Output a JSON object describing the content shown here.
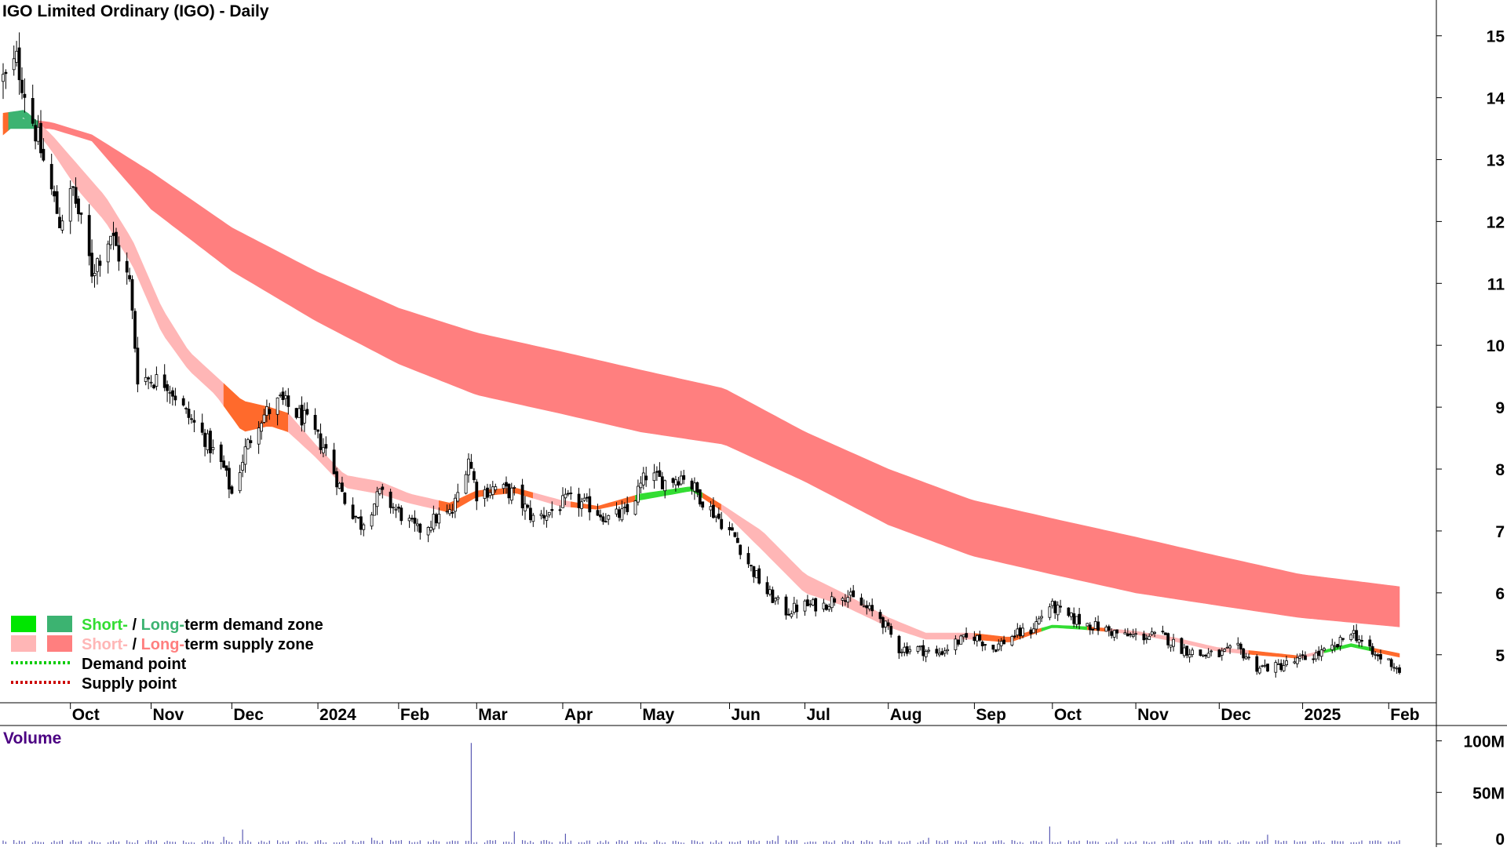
{
  "chart_data": {
    "type": "candlestick",
    "title": "IGO Limited Ordinary (IGO) - Daily",
    "price_axis": {
      "ticks": [
        5,
        6,
        7,
        8,
        9,
        10,
        11,
        12,
        13,
        14,
        15
      ],
      "range": [
        4.3,
        15.3
      ],
      "position": "right"
    },
    "time_axis": {
      "labels": [
        "Oct",
        "Nov",
        "Dec",
        "2024",
        "Feb",
        "Mar",
        "Apr",
        "May",
        "Jun",
        "Jul",
        "Aug",
        "Sep",
        "Oct",
        "Nov",
        "Dec",
        "2025",
        "Feb"
      ],
      "range": [
        "2023-09-07",
        "2025-02-07"
      ]
    },
    "anchors": [
      [
        "2023-09-08",
        14.3
      ],
      [
        "2023-09-12",
        14.6
      ],
      [
        "2023-09-20",
        13.3
      ],
      [
        "2023-09-28",
        12.0
      ],
      [
        "2023-10-03",
        12.5
      ],
      [
        "2023-10-10",
        11.2
      ],
      [
        "2023-10-17",
        11.8
      ],
      [
        "2023-10-24",
        11.0
      ],
      [
        "2023-10-27",
        9.5
      ],
      [
        "2023-11-07",
        9.4
      ],
      [
        "2023-11-14",
        8.9
      ],
      [
        "2023-11-21",
        8.5
      ],
      [
        "2023-11-28",
        8.0
      ],
      [
        "2023-12-01",
        7.6
      ],
      [
        "2023-12-06",
        8.3
      ],
      [
        "2023-12-11",
        8.8
      ],
      [
        "2023-12-19",
        9.1
      ],
      [
        "2023-12-28",
        8.8
      ],
      [
        "2024-01-05",
        8.3
      ],
      [
        "2024-01-12",
        7.5
      ],
      [
        "2024-01-18",
        7.1
      ],
      [
        "2024-01-25",
        7.6
      ],
      [
        "2024-02-01",
        7.3
      ],
      [
        "2024-02-08",
        7.0
      ],
      [
        "2024-02-15",
        7.2
      ],
      [
        "2024-02-21",
        7.3
      ],
      [
        "2024-02-27",
        8.2
      ],
      [
        "2024-03-01",
        7.6
      ],
      [
        "2024-03-08",
        7.7
      ],
      [
        "2024-03-15",
        7.6
      ],
      [
        "2024-03-22",
        7.2
      ],
      [
        "2024-03-28",
        7.3
      ],
      [
        "2024-04-04",
        7.5
      ],
      [
        "2024-04-12",
        7.4
      ],
      [
        "2024-04-19",
        7.2
      ],
      [
        "2024-04-26",
        7.3
      ],
      [
        "2024-05-03",
        7.9
      ],
      [
        "2024-05-10",
        7.8
      ],
      [
        "2024-05-17",
        7.9
      ],
      [
        "2024-05-24",
        7.5
      ],
      [
        "2024-05-30",
        7.2
      ],
      [
        "2024-06-05",
        6.9
      ],
      [
        "2024-06-11",
        6.4
      ],
      [
        "2024-06-17",
        6.0
      ],
      [
        "2024-06-24",
        5.7
      ],
      [
        "2024-07-01",
        5.8
      ],
      [
        "2024-07-08",
        5.8
      ],
      [
        "2024-07-15",
        6.0
      ],
      [
        "2024-07-22",
        5.8
      ],
      [
        "2024-07-29",
        5.6
      ],
      [
        "2024-08-05",
        5.1
      ],
      [
        "2024-08-12",
        5.1
      ],
      [
        "2024-08-19",
        5.0
      ],
      [
        "2024-08-26",
        5.2
      ],
      [
        "2024-09-02",
        5.3
      ],
      [
        "2024-09-09",
        5.1
      ],
      [
        "2024-09-16",
        5.3
      ],
      [
        "2024-09-23",
        5.4
      ],
      [
        "2024-09-30",
        5.8
      ],
      [
        "2024-10-07",
        5.6
      ],
      [
        "2024-10-14",
        5.5
      ],
      [
        "2024-10-21",
        5.4
      ],
      [
        "2024-10-28",
        5.3
      ],
      [
        "2024-11-04",
        5.3
      ],
      [
        "2024-11-11",
        5.3
      ],
      [
        "2024-11-18",
        5.1
      ],
      [
        "2024-11-25",
        5.0
      ],
      [
        "2024-12-02",
        5.0
      ],
      [
        "2024-12-09",
        5.1
      ],
      [
        "2024-12-16",
        4.8
      ],
      [
        "2024-12-23",
        4.8
      ],
      [
        "2024-12-31",
        4.9
      ],
      [
        "2025-01-07",
        5.0
      ],
      [
        "2025-01-14",
        5.1
      ],
      [
        "2025-01-20",
        5.4
      ],
      [
        "2025-01-28",
        5.0
      ],
      [
        "2025-02-03",
        4.9
      ],
      [
        "2025-02-07",
        4.75
      ]
    ],
    "short_term_zone": [
      [
        "2023-09-07",
        13.75,
        13.4
      ],
      [
        "2023-09-15",
        13.8,
        13.7
      ],
      [
        "2023-09-25",
        13.4,
        13.15
      ],
      [
        "2023-10-05",
        12.9,
        12.5
      ],
      [
        "2023-10-15",
        12.4,
        12.0
      ],
      [
        "2023-10-25",
        11.7,
        11.3
      ],
      [
        "2023-11-05",
        10.6,
        10.2
      ],
      [
        "2023-11-15",
        9.9,
        9.6
      ],
      [
        "2023-11-25",
        9.5,
        9.2
      ],
      [
        "2023-12-05",
        9.1,
        8.6
      ],
      [
        "2023-12-15",
        9.0,
        8.7
      ],
      [
        "2023-12-22",
        8.9,
        8.6
      ],
      [
        "2024-01-01",
        8.4,
        8.2
      ],
      [
        "2024-01-12",
        7.9,
        7.7
      ],
      [
        "2024-01-25",
        7.8,
        7.6
      ],
      [
        "2024-02-05",
        7.6,
        7.45
      ],
      [
        "2024-02-20",
        7.45,
        7.3
      ],
      [
        "2024-03-01",
        7.65,
        7.55
      ],
      [
        "2024-03-15",
        7.7,
        7.62
      ],
      [
        "2024-04-01",
        7.5,
        7.4
      ],
      [
        "2024-04-15",
        7.4,
        7.35
      ],
      [
        "2024-05-01",
        7.6,
        7.5
      ],
      [
        "2024-05-20",
        7.72,
        7.65
      ],
      [
        "2024-06-01",
        7.4,
        7.3
      ],
      [
        "2024-06-15",
        7.0,
        6.7
      ],
      [
        "2024-07-01",
        6.3,
        6.0
      ],
      [
        "2024-07-15",
        6.0,
        5.8
      ],
      [
        "2024-08-01",
        5.6,
        5.45
      ],
      [
        "2024-08-15",
        5.35,
        5.25
      ],
      [
        "2024-09-01",
        5.35,
        5.25
      ],
      [
        "2024-09-15",
        5.28,
        5.2
      ],
      [
        "2024-10-01",
        5.48,
        5.44
      ],
      [
        "2024-10-15",
        5.45,
        5.4
      ],
      [
        "2024-11-01",
        5.38,
        5.33
      ],
      [
        "2024-11-15",
        5.28,
        5.22
      ],
      [
        "2024-12-01",
        5.12,
        5.06
      ],
      [
        "2024-12-15",
        5.06,
        5.0
      ],
      [
        "2025-01-01",
        4.98,
        4.94
      ],
      [
        "2025-01-20",
        5.18,
        5.13
      ],
      [
        "2025-02-07",
        5.02,
        4.96
      ]
    ],
    "long_term_zone": [
      [
        "2023-09-07",
        13.7,
        13.5
      ],
      [
        "2023-09-25",
        13.6,
        13.5
      ],
      [
        "2023-10-10",
        13.4,
        13.3
      ],
      [
        "2023-11-01",
        12.8,
        12.2
      ],
      [
        "2023-12-01",
        11.9,
        11.2
      ],
      [
        "2024-01-01",
        11.2,
        10.4
      ],
      [
        "2024-02-01",
        10.6,
        9.7
      ],
      [
        "2024-03-01",
        10.2,
        9.2
      ],
      [
        "2024-04-01",
        9.9,
        8.9
      ],
      [
        "2024-05-01",
        9.6,
        8.6
      ],
      [
        "2024-06-01",
        9.3,
        8.4
      ],
      [
        "2024-07-01",
        8.6,
        7.8
      ],
      [
        "2024-08-01",
        8.0,
        7.1
      ],
      [
        "2024-09-01",
        7.5,
        6.6
      ],
      [
        "2024-10-01",
        7.2,
        6.3
      ],
      [
        "2024-11-01",
        6.9,
        6.0
      ],
      [
        "2024-12-01",
        6.6,
        5.8
      ],
      [
        "2025-01-01",
        6.3,
        5.6
      ],
      [
        "2025-02-07",
        6.1,
        5.45
      ]
    ],
    "short_zone_colors": [
      [
        "2023-09-07",
        "2023-09-09",
        "#ff6a2c"
      ],
      [
        "2023-09-09",
        "2023-09-20",
        "#3cb371"
      ],
      [
        "2023-09-20",
        "2023-11-28",
        "#ffb6b6"
      ],
      [
        "2023-11-28",
        "2023-12-22",
        "#ff6a2c"
      ],
      [
        "2023-12-22",
        "2024-02-16",
        "#ffb6b6"
      ],
      [
        "2024-02-16",
        "2024-03-22",
        "#ff6a2c"
      ],
      [
        "2024-03-22",
        "2024-04-05",
        "#ffb6b6"
      ],
      [
        "2024-04-05",
        "2024-04-29",
        "#ff6a2c"
      ],
      [
        "2024-04-29",
        "2024-05-24",
        "#33dd33"
      ],
      [
        "2024-05-24",
        "2024-05-31",
        "#ff6a2c"
      ],
      [
        "2024-05-31",
        "2024-09-02",
        "#ffb6b6"
      ],
      [
        "2024-09-02",
        "2024-09-27",
        "#ff6a2c"
      ],
      [
        "2024-09-27",
        "2024-10-14",
        "#33dd33"
      ],
      [
        "2024-10-14",
        "2024-10-21",
        "#ff6a2c"
      ],
      [
        "2024-10-21",
        "2024-12-13",
        "#ffb6b6"
      ],
      [
        "2024-12-13",
        "2024-12-31",
        "#ff6a2c"
      ],
      [
        "2024-12-31",
        "2025-01-10",
        "#ffb6b6"
      ],
      [
        "2025-01-10",
        "2025-01-28",
        "#33dd33"
      ],
      [
        "2025-01-28",
        "2025-02-07",
        "#ff6a2c"
      ]
    ],
    "long_zone_colors": [
      [
        "2023-09-07",
        "2023-09-09",
        "#ff7f7f"
      ],
      [
        "2023-09-09",
        "2023-09-20",
        "#3cb371"
      ],
      [
        "2023-09-20",
        "2025-02-07",
        "#ff7f7f"
      ]
    ],
    "legend": {
      "placement": "bottom-left",
      "items": [
        {
          "parts": [
            "Short-",
            " / ",
            "Long-",
            "term demand zone"
          ],
          "colors": [
            "#33dd33",
            "#000000",
            "#3cb371",
            "#000000"
          ],
          "swatches": [
            "#00e600",
            "#3cb371"
          ],
          "style": "box"
        },
        {
          "parts": [
            "Short-",
            " / ",
            "Long-",
            "term supply zone"
          ],
          "colors": [
            "#ffb6b6",
            "#000000",
            "#ff7f7f",
            "#000000"
          ],
          "swatches": [
            "#ffb6b6",
            "#ff7f7f"
          ],
          "style": "box"
        },
        {
          "parts": [
            "Demand point"
          ],
          "colors": [
            "#000000"
          ],
          "swatches": [
            "#00cc00"
          ],
          "style": "dots"
        },
        {
          "parts": [
            "Supply point"
          ],
          "colors": [
            "#000000"
          ],
          "swatches": [
            "#cc0000"
          ],
          "style": "dots"
        }
      ]
    },
    "volume": {
      "title": "Volume",
      "ticks": [
        "100M",
        "50M",
        "0"
      ],
      "tick_values": [
        100,
        50,
        0
      ],
      "unit": "M",
      "range": [
        0,
        105
      ],
      "typical": 2.5,
      "spikes": [
        [
          "2023-11-28",
          7
        ],
        [
          "2023-12-05",
          14
        ],
        [
          "2024-01-22",
          6
        ],
        [
          "2024-02-28",
          98
        ],
        [
          "2024-03-15",
          12
        ],
        [
          "2024-04-03",
          10
        ],
        [
          "2024-06-21",
          8
        ],
        [
          "2024-09-30",
          17
        ],
        [
          "2024-12-20",
          9
        ],
        [
          "2024-08-16",
          6
        ],
        [
          "2024-10-25",
          5
        ]
      ],
      "color": "#5a5ab4"
    },
    "colors": {
      "up_fill": "#ffffff",
      "down_fill": "#000000",
      "wick": "#000000",
      "axis": "#000000"
    }
  }
}
